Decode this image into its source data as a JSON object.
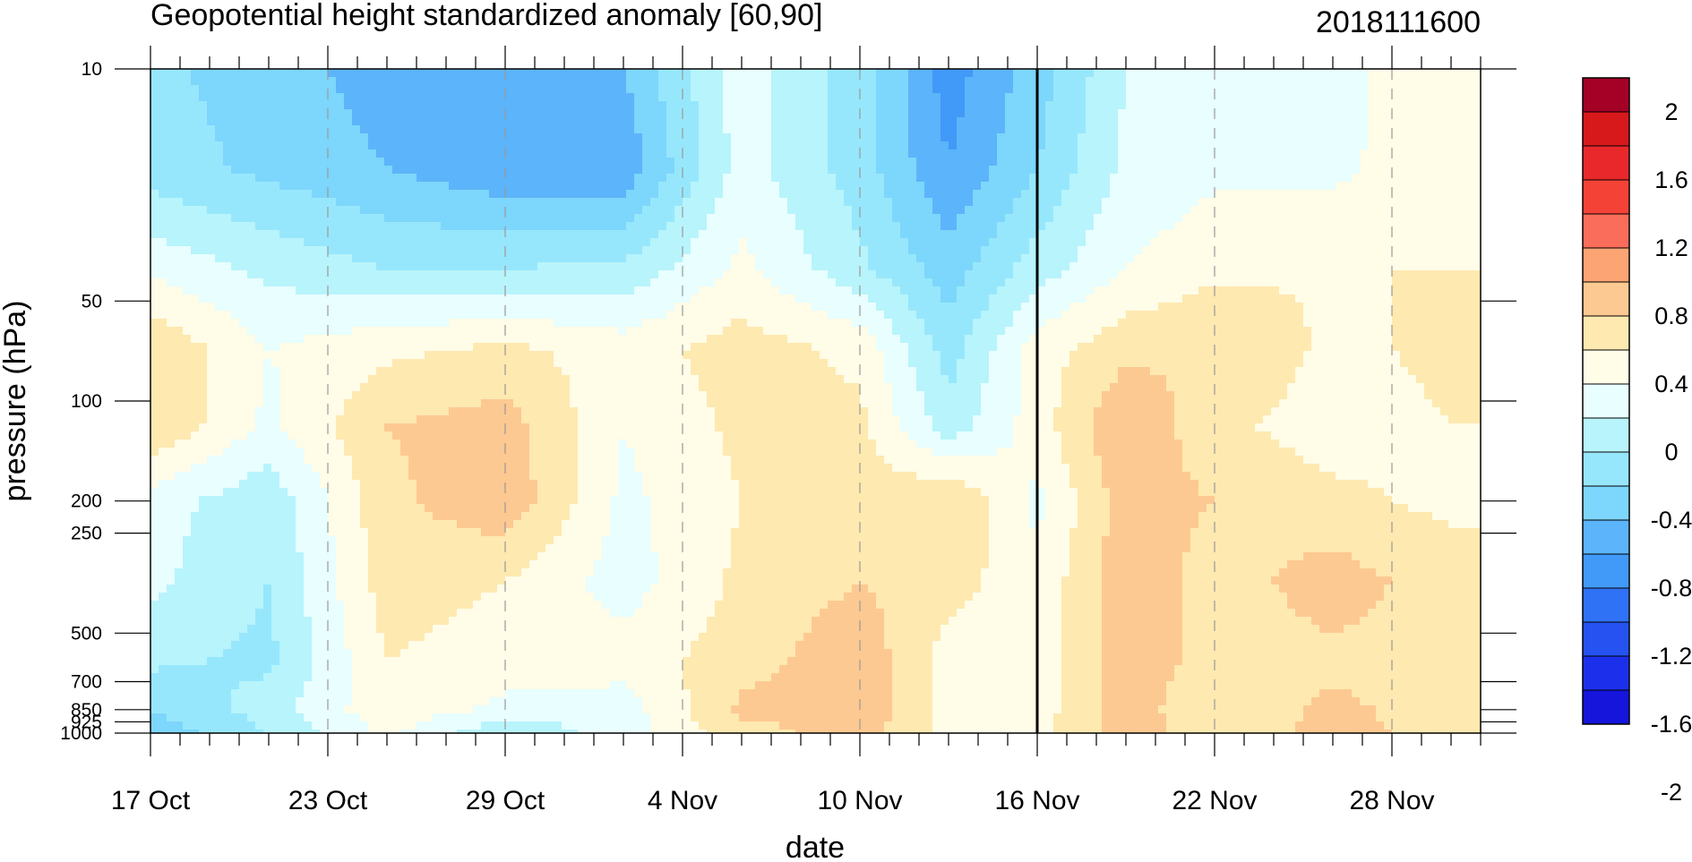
{
  "chart_data": {
    "type": "heatmap",
    "subtype": "filled-contour",
    "title": "Geopotential height standardized anomaly [60,90]",
    "date_stamp": "2018111600",
    "xlabel": "date",
    "ylabel": "pressure (hPa)",
    "x_range": [
      "2018-10-17",
      "2018-12-01"
    ],
    "y_range": [
      1000,
      10
    ],
    "y_scale": "log",
    "x_ticks": [
      {
        "date": "2018-10-17",
        "label": "17 Oct"
      },
      {
        "date": "2018-10-23",
        "label": "23 Oct"
      },
      {
        "date": "2018-10-29",
        "label": "29 Oct"
      },
      {
        "date": "2018-11-04",
        "label": "4 Nov"
      },
      {
        "date": "2018-11-10",
        "label": "10 Nov"
      },
      {
        "date": "2018-11-16",
        "label": "16 Nov"
      },
      {
        "date": "2018-11-22",
        "label": "22 Nov"
      },
      {
        "date": "2018-11-28",
        "label": "28 Nov"
      }
    ],
    "y_ticks": [
      {
        "value": 10,
        "label": "10"
      },
      {
        "value": 50,
        "label": "50"
      },
      {
        "value": 100,
        "label": "100"
      },
      {
        "value": 200,
        "label": "200"
      },
      {
        "value": 250,
        "label": "250"
      },
      {
        "value": 500,
        "label": "500"
      },
      {
        "value": 700,
        "label": "700"
      },
      {
        "value": 850,
        "label": "850"
      },
      {
        "value": 925,
        "label": "925"
      },
      {
        "value": 1000,
        "label": "1000"
      }
    ],
    "marker_date": "2018-11-16",
    "grid": "dashed vertical lines at labelled dates",
    "colorbar": {
      "placement": "right",
      "labels": [
        "2",
        "1.6",
        "1.2",
        "0.8",
        "0.4",
        "0",
        "-0.4",
        "-0.8",
        "-1.2",
        "-1.6",
        "-2"
      ],
      "colors": [
        "#a50026",
        "#d7191c",
        "#e9282c",
        "#f44336",
        "#fa6d5a",
        "#fca474",
        "#fdc992",
        "#fee9b0",
        "#fffce8",
        "#e8feff",
        "#b8f4fc",
        "#97e7fc",
        "#7dd6fb",
        "#5cb4fa",
        "#4199f8",
        "#2f72f5",
        "#2552f0",
        "#1c30eb",
        "#1515dc"
      ]
    },
    "field_nodes": {
      "x": [
        "2018-10-17",
        "2018-10-21",
        "2018-10-25",
        "2018-10-29",
        "2018-11-02",
        "2018-11-06",
        "2018-11-10",
        "2018-11-13",
        "2018-11-16",
        "2018-11-19",
        "2018-11-22",
        "2018-11-26",
        "2018-11-30"
      ],
      "y": [
        10,
        20,
        40,
        70,
        120,
        200,
        350,
        600,
        850,
        1000
      ],
      "values": [
        [
          -0.35,
          -0.5,
          -0.7,
          -0.75,
          -0.6,
          0.1,
          -0.3,
          -0.9,
          -0.5,
          0.0,
          0.05,
          0.15,
          0.3
        ],
        [
          -0.3,
          -0.45,
          -0.6,
          -0.75,
          -0.75,
          0.1,
          -0.3,
          -0.8,
          -0.4,
          0.05,
          0.15,
          0.15,
          0.35
        ],
        [
          0.15,
          -0.05,
          -0.2,
          -0.2,
          -0.15,
          0.25,
          -0.15,
          -0.5,
          -0.1,
          0.2,
          0.35,
          0.4,
          0.4
        ],
        [
          0.6,
          0.2,
          0.35,
          0.45,
          0.3,
          0.5,
          0.35,
          -0.3,
          0.3,
          0.55,
          0.6,
          0.35,
          0.45
        ],
        [
          0.6,
          0.15,
          0.6,
          0.7,
          0.2,
          0.45,
          0.45,
          -0.1,
          0.3,
          0.8,
          0.45,
          0.3,
          0.4
        ],
        [
          0.1,
          -0.15,
          0.55,
          0.75,
          0.15,
          0.4,
          0.5,
          0.6,
          0.15,
          0.7,
          0.6,
          0.45,
          0.35
        ],
        [
          0.05,
          -0.2,
          0.5,
          0.4,
          0.1,
          0.45,
          0.6,
          0.5,
          0.25,
          0.75,
          0.5,
          0.7,
          0.5
        ],
        [
          -0.15,
          -0.25,
          0.4,
          0.3,
          0.3,
          0.5,
          0.75,
          0.3,
          0.25,
          0.75,
          0.5,
          0.55,
          0.5
        ],
        [
          -0.4,
          -0.1,
          0.35,
          0.15,
          0.1,
          0.65,
          0.75,
          0.3,
          0.3,
          0.7,
          0.45,
          0.65,
          0.5
        ],
        [
          -0.55,
          -0.2,
          0.25,
          -0.2,
          0.1,
          0.5,
          0.7,
          0.35,
          0.35,
          0.7,
          0.5,
          0.65,
          0.55
        ]
      ]
    }
  }
}
